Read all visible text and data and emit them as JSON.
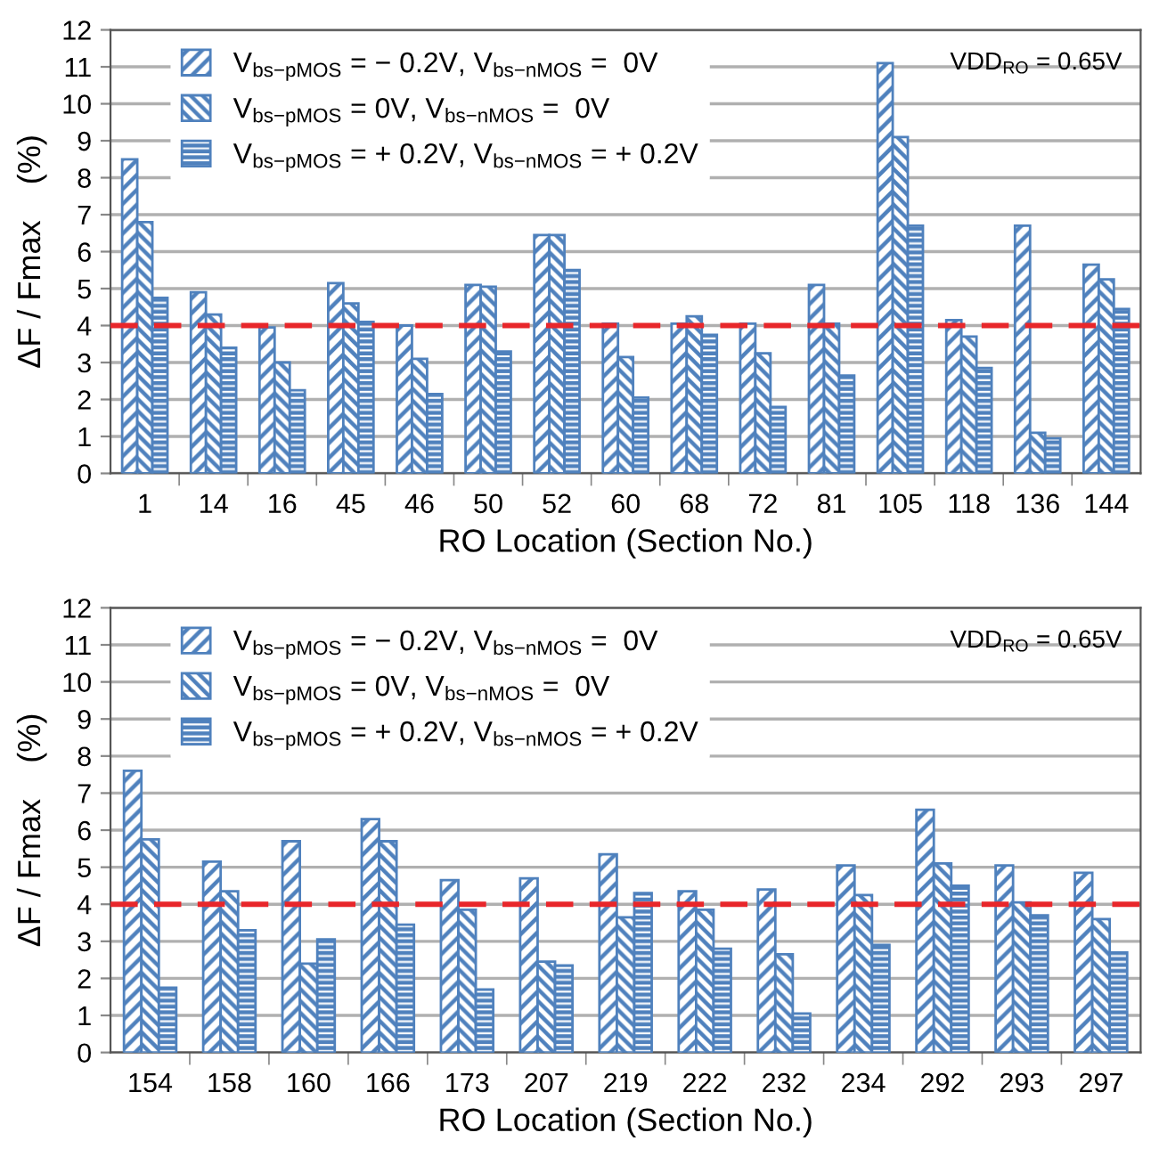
{
  "chart_data": [
    {
      "type": "bar",
      "categories": [
        "1",
        "14",
        "16",
        "45",
        "46",
        "50",
        "52",
        "60",
        "68",
        "72",
        "81",
        "105",
        "118",
        "136",
        "144"
      ],
      "series": [
        {
          "name": "V$_{bs−pMOS}$ = − 0.2V, V$_{bs−nMOS}$ =  0V",
          "color": "#4f81bd",
          "values": [
            8.5,
            4.9,
            3.95,
            5.15,
            4.0,
            5.1,
            6.45,
            4.05,
            4.05,
            4.05,
            5.1,
            11.1,
            4.15,
            6.7,
            5.65
          ]
        },
        {
          "name": "V$_{bs−pMOS}$ = 0V, V$_{bs−nMOS}$ =  0V",
          "color": "#4f81bd",
          "values": [
            6.8,
            4.3,
            3.0,
            4.6,
            3.1,
            5.05,
            6.45,
            3.15,
            4.25,
            3.25,
            4.05,
            9.1,
            3.7,
            1.1,
            5.25
          ]
        },
        {
          "name": "V$_{bs−pMOS}$ = + 0.2V, V$_{bs−nMOS}$ = + 0.2V",
          "color": "#4f81bd",
          "values": [
            4.75,
            3.4,
            2.25,
            4.1,
            2.15,
            3.3,
            5.5,
            2.05,
            3.75,
            1.8,
            2.65,
            6.7,
            2.85,
            0.95,
            4.45
          ]
        }
      ],
      "xlabel": "RO Location (Section No.)",
      "ylabel": "ΔF / Fmax    (%)",
      "ylim": [
        0,
        12
      ],
      "yticks": [
        0,
        1,
        2,
        3,
        4,
        5,
        6,
        7,
        8,
        9,
        10,
        11,
        12
      ],
      "grid": "y",
      "legend": "top left",
      "annotations": [
        "VDD$_{RO}$ = 0.65V"
      ],
      "ref_lines": [
        {
          "axis": "y",
          "value": 4,
          "label": null,
          "color": "#e8262a",
          "line_style": "dashed"
        }
      ]
    },
    {
      "type": "bar",
      "categories": [
        "154",
        "158",
        "160",
        "166",
        "173",
        "207",
        "219",
        "222",
        "232",
        "234",
        "292",
        "293",
        "297"
      ],
      "series": [
        {
          "name": "V$_{bs−pMOS}$ = − 0.2V, V$_{bs−nMOS}$ =  0V",
          "color": "#4f81bd",
          "values": [
            7.6,
            5.15,
            5.7,
            6.3,
            4.65,
            4.7,
            5.35,
            4.35,
            4.4,
            5.05,
            6.55,
            5.05,
            4.85
          ]
        },
        {
          "name": "V$_{bs−pMOS}$ = 0V, V$_{bs−nMOS}$ =  0V",
          "color": "#4f81bd",
          "values": [
            5.75,
            4.35,
            2.4,
            5.7,
            3.85,
            2.45,
            3.65,
            3.85,
            2.65,
            4.25,
            5.1,
            4.05,
            3.6
          ]
        },
        {
          "name": "V$_{bs−pMOS}$ = + 0.2V, V$_{bs−nMOS}$ = + 0.2V",
          "color": "#4f81bd",
          "values": [
            1.75,
            3.3,
            3.05,
            3.45,
            1.7,
            2.35,
            4.3,
            2.8,
            1.05,
            2.9,
            4.5,
            3.7,
            2.7
          ]
        }
      ],
      "xlabel": "RO Location (Section No.)",
      "ylabel": "ΔF / Fmax    (%)",
      "ylim": [
        0,
        12
      ],
      "yticks": [
        0,
        1,
        2,
        3,
        4,
        5,
        6,
        7,
        8,
        9,
        10,
        11,
        12
      ],
      "grid": "y",
      "legend": "top left",
      "annotations": [
        "VDD$_{RO}$ = 0.65V"
      ],
      "ref_lines": [
        {
          "axis": "y",
          "value": 4,
          "label": null,
          "color": "#e8262a",
          "line_style": "dashed"
        }
      ]
    }
  ]
}
